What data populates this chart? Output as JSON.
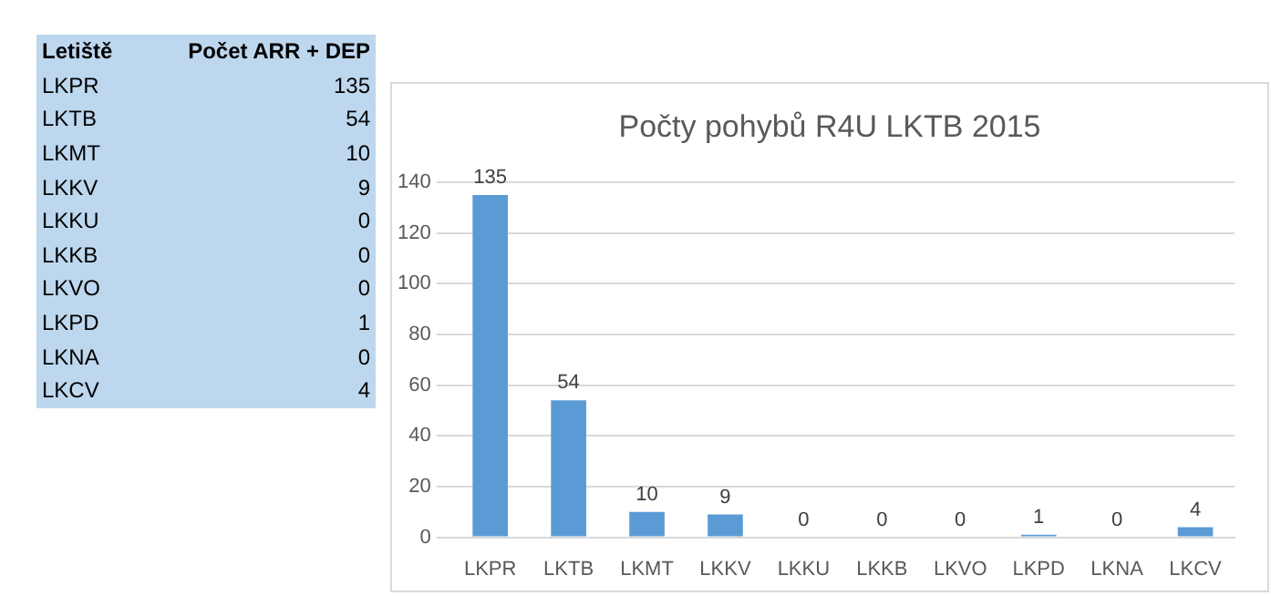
{
  "chart_data": [
    {
      "type": "other",
      "annotations": [
        "Letiště",
        "Počet ARR + DEP"
      ],
      "categories": [
        "LKPR",
        "LKTB",
        "LKMT",
        "LKKV",
        "LKKU",
        "LKKB",
        "LKVO",
        "LKPD",
        "LKNA",
        "LKCV"
      ],
      "values": [
        135,
        54,
        10,
        9,
        0,
        0,
        0,
        1,
        0,
        4
      ],
      "data_labels": true
    },
    {
      "type": "bar",
      "title": "Počty pohybů R4U LKTB 2015",
      "categories": [
        "LKPR",
        "LKTB",
        "LKMT",
        "LKKV",
        "LKKU",
        "LKKB",
        "LKVO",
        "LKPD",
        "LKNA",
        "LKCV"
      ],
      "values": [
        135,
        54,
        10,
        9,
        0,
        0,
        0,
        1,
        0,
        4
      ],
      "color": "#5b9bd5",
      "ylim": [
        0,
        140
      ],
      "yticks": [
        0,
        20,
        40,
        60,
        80,
        100,
        120,
        140
      ],
      "grid": "y",
      "data_labels": true
    }
  ]
}
